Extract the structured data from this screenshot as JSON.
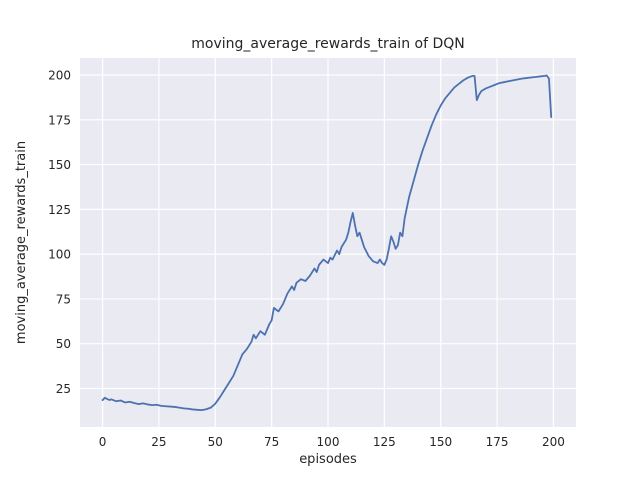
{
  "chart_data": {
    "type": "line",
    "title": "moving_average_rewards_train of DQN",
    "xlabel": "episodes",
    "ylabel": "moving_average_rewards_train",
    "xlim": [
      -10,
      210
    ],
    "ylim": [
      3.5,
      209.5
    ],
    "xticks": [
      0,
      25,
      50,
      75,
      100,
      125,
      150,
      175,
      200
    ],
    "yticks": [
      25,
      50,
      75,
      100,
      125,
      150,
      175,
      200
    ],
    "grid": true,
    "legend": "none",
    "colors": {
      "line": "#4c72b0",
      "plot_background": "#eaeaf2",
      "grid": "#ffffff",
      "text": "#262626",
      "figure_background": "#ffffff"
    },
    "series": [
      {
        "name": "moving_average_rewards_train",
        "x": [
          0,
          1,
          2,
          3,
          4,
          6,
          8,
          10,
          12,
          14,
          16,
          18,
          20,
          22,
          24,
          26,
          28,
          30,
          32,
          34,
          36,
          38,
          40,
          42,
          44,
          46,
          48,
          50,
          52,
          54,
          56,
          58,
          60,
          62,
          64,
          66,
          67,
          68,
          70,
          72,
          74,
          75,
          76,
          78,
          80,
          82,
          84,
          85,
          86,
          88,
          90,
          92,
          94,
          95,
          96,
          98,
          100,
          101,
          102,
          104,
          105,
          106,
          108,
          109,
          110,
          111,
          112,
          113,
          114,
          115,
          116,
          118,
          120,
          122,
          123,
          124,
          125,
          126,
          127,
          128,
          129,
          130,
          131,
          132,
          133,
          134,
          136,
          138,
          140,
          142,
          144,
          146,
          148,
          150,
          152,
          154,
          156,
          158,
          160,
          162,
          164,
          165,
          166,
          167,
          168,
          170,
          172,
          174,
          176,
          178,
          180,
          182,
          184,
          186,
          188,
          190,
          192,
          194,
          196,
          197,
          198,
          199
        ],
        "y": [
          18.5,
          19.8,
          19.2,
          18.6,
          18.9,
          17.9,
          18.3,
          17.2,
          17.6,
          16.9,
          16.3,
          16.7,
          16.1,
          15.7,
          15.9,
          15.3,
          15.1,
          14.9,
          14.7,
          14.3,
          13.9,
          13.7,
          13.3,
          13.1,
          12.9,
          13.4,
          14.3,
          16.5,
          20,
          24,
          28,
          32,
          38,
          44,
          47,
          51,
          55,
          53,
          57,
          55,
          61,
          63,
          70,
          68,
          72,
          78,
          82,
          80,
          84,
          86,
          85,
          88,
          92,
          90,
          94,
          97,
          95,
          98,
          97,
          102,
          100,
          104,
          108,
          112,
          118,
          123,
          116,
          110,
          112,
          108,
          104,
          99,
          96,
          95,
          97,
          95,
          94,
          97,
          103,
          110,
          107,
          103,
          105,
          112,
          110,
          120,
          132,
          141,
          150,
          158,
          165,
          172,
          178,
          183,
          187,
          190,
          193,
          195,
          197,
          198.5,
          199.5,
          199.5,
          186,
          189,
          191,
          192.5,
          193.5,
          194.5,
          195.5,
          196,
          196.5,
          197,
          197.5,
          198,
          198.3,
          198.6,
          198.9,
          199.2,
          199.5,
          199.7,
          198,
          176.5
        ]
      }
    ]
  }
}
